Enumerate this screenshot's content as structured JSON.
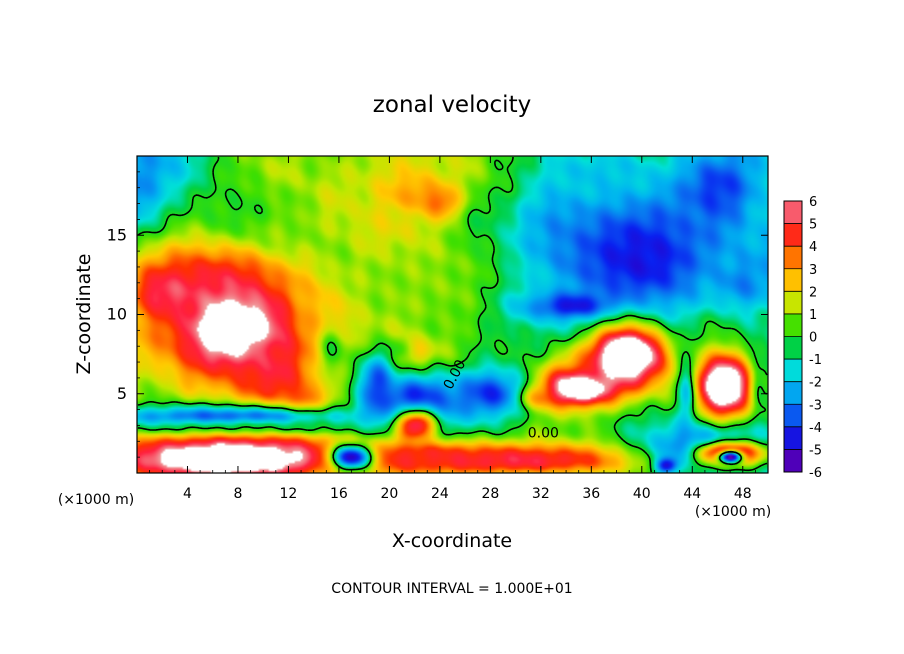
{
  "chart_data": {
    "type": "heatmap",
    "title": "zonal velocity",
    "xlabel": "X-coordinate",
    "ylabel": "Z-coordinate",
    "x_unit_label": "(×1000 m)",
    "x_unit_label_right": "(×1000 m)",
    "footer": "CONTOUR INTERVAL = 1.000E+01",
    "xlim": [
      0,
      50
    ],
    "ylim": [
      0,
      20
    ],
    "x_ticks": [
      4,
      8,
      12,
      16,
      20,
      24,
      28,
      32,
      36,
      40,
      44,
      48
    ],
    "x_tick_labels": [
      "4",
      "8",
      "12",
      "16",
      "20",
      "24",
      "28",
      "32",
      "36",
      "40",
      "44",
      "48"
    ],
    "y_ticks": [
      5,
      10,
      15
    ],
    "y_tick_labels": [
      "5",
      "10",
      "15"
    ],
    "colorbar": {
      "levels": [
        -6,
        -5,
        -4,
        -3,
        -2,
        -1,
        0,
        1,
        2,
        3,
        4,
        5,
        6
      ],
      "labels": [
        "-6",
        "-5",
        "-4",
        "-3",
        "-2",
        "-1",
        "0",
        "1",
        "2",
        "3",
        "4",
        "5",
        "6"
      ],
      "colors": [
        "#7a00a8",
        "#2a00c8",
        "#0a20f0",
        "#0a70f0",
        "#00b4f0",
        "#00e0d8",
        "#00d040",
        "#40e000",
        "#c0e800",
        "#ffcc00",
        "#ff9000",
        "#ff3000",
        "#ff2040",
        "#f0a0a0"
      ],
      "overflow_color": "#ffffff"
    },
    "contour_labels": [
      {
        "text": "0.00",
        "x": 25.2,
        "y": 6.2,
        "rotate": -62
      },
      {
        "text": "0.00",
        "x": 32.2,
        "y": 2.5,
        "rotate": 0
      }
    ],
    "blobs": [
      {
        "x": 2,
        "y": 19.5,
        "rx": 6,
        "ry": 3,
        "v": -2
      },
      {
        "x": 0,
        "y": 18,
        "rx": 3,
        "ry": 4,
        "v": -3
      },
      {
        "x": 9,
        "y": 16,
        "rx": 6,
        "ry": 3,
        "v": 0
      },
      {
        "x": 6,
        "y": 12.5,
        "rx": 7,
        "ry": 2.2,
        "v": 4
      },
      {
        "x": 2,
        "y": 11.5,
        "rx": 3,
        "ry": 2,
        "v": 5
      },
      {
        "x": 8,
        "y": 9,
        "rx": 6,
        "ry": 3.3,
        "v": 8
      },
      {
        "x": 11,
        "y": 6.5,
        "rx": 3,
        "ry": 3,
        "v": 5
      },
      {
        "x": 13.5,
        "y": 4.2,
        "rx": 2,
        "ry": 1.4,
        "v": 5
      },
      {
        "x": 14,
        "y": 10.5,
        "rx": 2,
        "ry": 2,
        "v": 3
      },
      {
        "x": 15.5,
        "y": 7.8,
        "rx": 1.3,
        "ry": 1.8,
        "v": 0
      },
      {
        "x": 15.5,
        "y": 5.5,
        "rx": 1.5,
        "ry": 1.2,
        "v": 2
      },
      {
        "x": 11.5,
        "y": 15.5,
        "rx": 2,
        "ry": 1.5,
        "v": 1
      },
      {
        "x": 21,
        "y": 18.5,
        "rx": 4,
        "ry": 2,
        "v": 2
      },
      {
        "x": 22,
        "y": 17.5,
        "rx": 3,
        "ry": 1.5,
        "v": 3
      },
      {
        "x": 24,
        "y": 17,
        "rx": 1.8,
        "ry": 1.2,
        "v": 4
      },
      {
        "x": 21,
        "y": 15.5,
        "rx": 2.5,
        "ry": 1.3,
        "v": 2
      },
      {
        "x": 24,
        "y": 12,
        "rx": 9,
        "ry": 3,
        "v": 1
      },
      {
        "x": 22,
        "y": 7,
        "rx": 2,
        "ry": 1.5,
        "v": 4
      },
      {
        "x": 21,
        "y": 6,
        "rx": 2,
        "ry": 1.3,
        "v": 3
      },
      {
        "x": 25,
        "y": 6.5,
        "rx": 1.5,
        "ry": 1.5,
        "v": 2
      },
      {
        "x": 20.5,
        "y": 8,
        "rx": 1.3,
        "ry": 1,
        "v": 1
      },
      {
        "x": 30.5,
        "y": 10.5,
        "rx": 3,
        "ry": 2,
        "v": -1
      },
      {
        "x": 33,
        "y": 16,
        "rx": 4,
        "ry": 4,
        "v": -2
      },
      {
        "x": 39,
        "y": 14,
        "rx": 9,
        "ry": 5,
        "v": -3.5
      },
      {
        "x": 40,
        "y": 13.5,
        "rx": 5,
        "ry": 3,
        "v": -4.5
      },
      {
        "x": 46,
        "y": 18,
        "rx": 4,
        "ry": 3,
        "v": -4
      },
      {
        "x": 37,
        "y": 19,
        "rx": 5,
        "ry": 1.5,
        "v": -2
      },
      {
        "x": 48,
        "y": 12,
        "rx": 3,
        "ry": 2,
        "v": -3
      },
      {
        "x": 38,
        "y": 9,
        "rx": 5,
        "ry": 1.5,
        "v": -3
      },
      {
        "x": 45.5,
        "y": 9,
        "rx": 3,
        "ry": 1.5,
        "v": -0.5
      },
      {
        "x": 35,
        "y": 10.5,
        "rx": 4,
        "ry": 1,
        "v": -5
      },
      {
        "x": 38.5,
        "y": 7,
        "rx": 4,
        "ry": 2.8,
        "v": 5
      },
      {
        "x": 34,
        "y": 5.5,
        "rx": 3.5,
        "ry": 1.8,
        "v": 5
      },
      {
        "x": 39,
        "y": 7.5,
        "rx": 3,
        "ry": 1.8,
        "v": 8
      },
      {
        "x": 35,
        "y": 5.3,
        "rx": 3,
        "ry": 1,
        "v": 8
      },
      {
        "x": 31,
        "y": 4.8,
        "rx": 2,
        "ry": 0.8,
        "v": 7
      },
      {
        "x": 28,
        "y": 5,
        "rx": 4,
        "ry": 2,
        "v": -4
      },
      {
        "x": 22,
        "y": 4.5,
        "rx": 4.5,
        "ry": 2.5,
        "v": -4.5
      },
      {
        "x": 19,
        "y": 5.5,
        "rx": 1.5,
        "ry": 2.5,
        "v": -4
      },
      {
        "x": 22,
        "y": 3,
        "rx": 2,
        "ry": 1.1,
        "v": 8
      },
      {
        "x": 46.5,
        "y": 5.5,
        "rx": 3,
        "ry": 2.8,
        "v": 5
      },
      {
        "x": 46.5,
        "y": 5.5,
        "rx": 2,
        "ry": 1.8,
        "v": 8
      },
      {
        "x": 43.5,
        "y": 5,
        "rx": 0.8,
        "ry": 3,
        "v": -2
      },
      {
        "x": 49.5,
        "y": 5.5,
        "rx": 0.8,
        "ry": 2.5,
        "v": 0
      },
      {
        "x": 25,
        "y": 1,
        "rx": 24,
        "ry": 1.2,
        "v": 3.5
      },
      {
        "x": 30,
        "y": 0.8,
        "rx": 11,
        "ry": 0.9,
        "v": 5
      },
      {
        "x": 22,
        "y": 1,
        "rx": 4,
        "ry": 0.8,
        "v": 4.5
      },
      {
        "x": 7,
        "y": 3.5,
        "rx": 13,
        "ry": 0.9,
        "v": -3.8
      },
      {
        "x": 9,
        "y": 2.8,
        "rx": 11,
        "ry": 0.6,
        "v": -1.5
      },
      {
        "x": 8,
        "y": 1.3,
        "rx": 10,
        "ry": 1.4,
        "v": 5
      },
      {
        "x": 7,
        "y": 0.8,
        "rx": 8,
        "ry": 1.2,
        "v": 8
      },
      {
        "x": 17,
        "y": 1,
        "rx": 2,
        "ry": 1,
        "v": -5
      },
      {
        "x": 45,
        "y": 1.5,
        "rx": 6,
        "ry": 1.6,
        "v": -4
      },
      {
        "x": 47,
        "y": 1.2,
        "rx": 3,
        "ry": 0.9,
        "v": 8
      },
      {
        "x": 47,
        "y": 1,
        "rx": 1.2,
        "ry": 0.5,
        "v": -6
      },
      {
        "x": 42,
        "y": 0.5,
        "rx": 1,
        "ry": 0.6,
        "v": -5
      }
    ]
  }
}
